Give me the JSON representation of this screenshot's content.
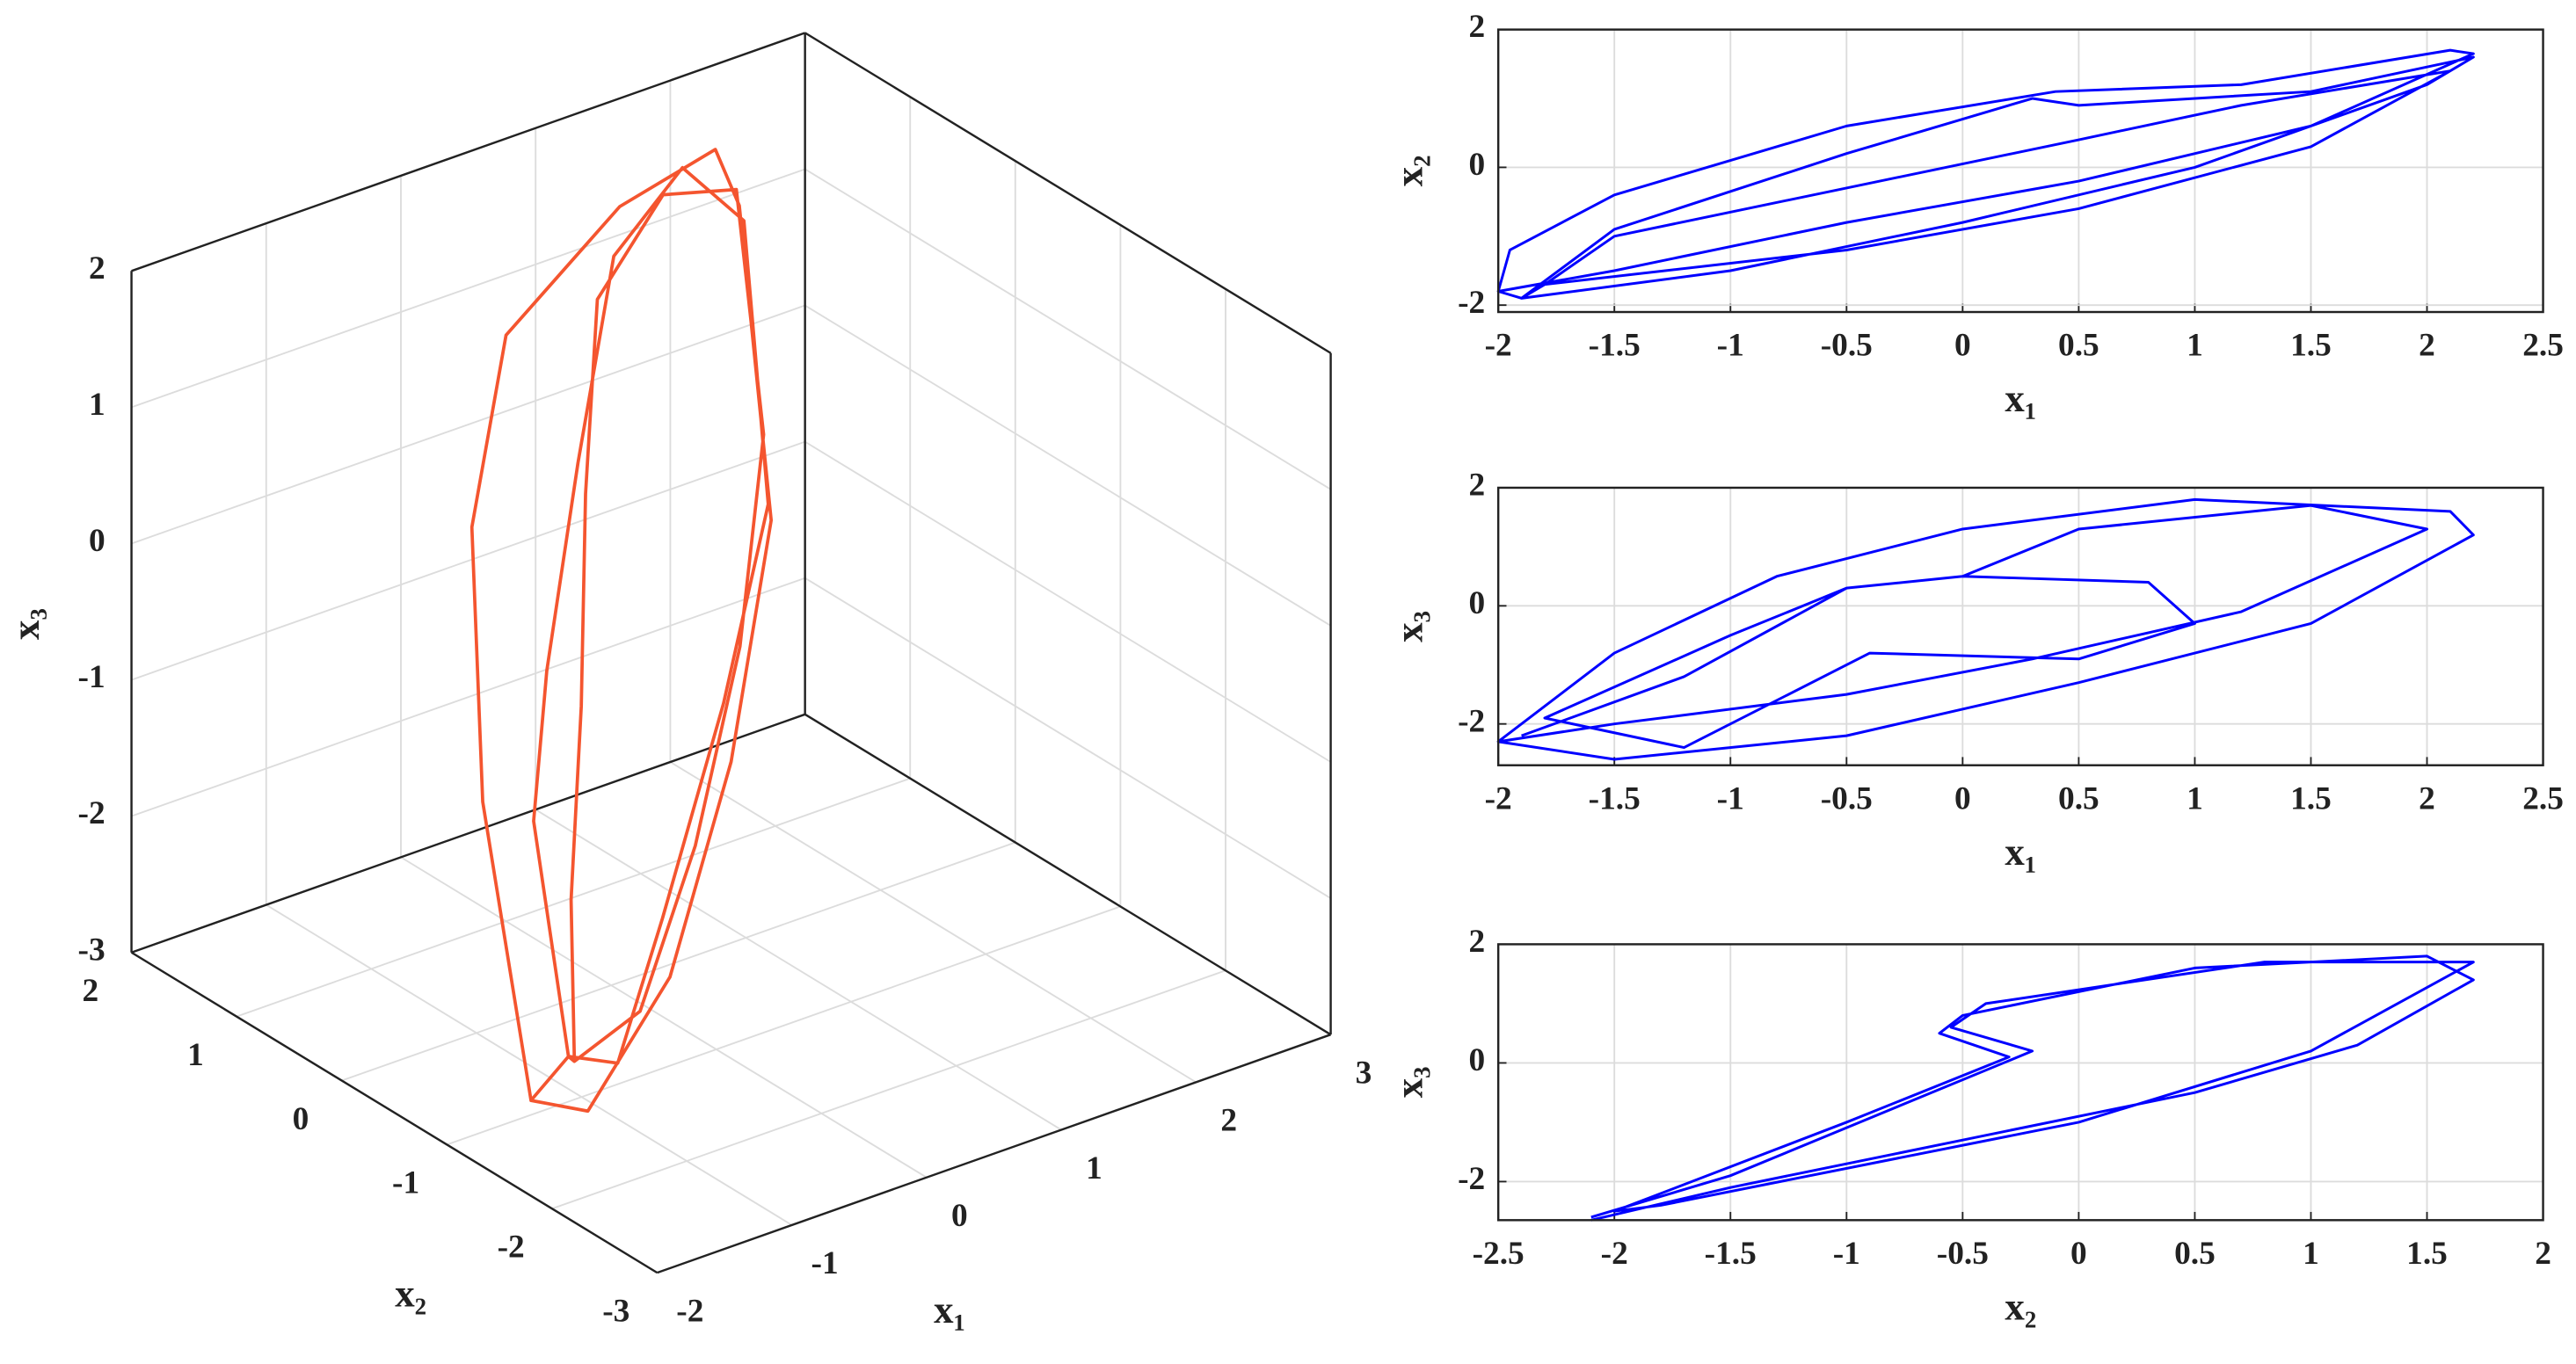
{
  "chart_data": [
    {
      "type": "line3d",
      "xlabel": "x₁",
      "ylabel": "x₂",
      "zlabel": "x₃",
      "color": "#f4552f",
      "grid": true,
      "xlim": [
        -2,
        3
      ],
      "ylim": [
        -3,
        2
      ],
      "zlim": [
        -3,
        2
      ],
      "xticks": [
        -2,
        -1,
        0,
        1,
        2,
        3
      ],
      "yticks": [
        -3,
        -2,
        -1,
        0,
        1,
        2
      ],
      "zticks": [
        -3,
        -2,
        -1,
        0,
        1,
        2
      ],
      "x": [
        -2,
        -1.5,
        -0.5,
        0.5,
        1.5,
        2.2,
        2.1,
        1,
        0,
        -0.8,
        -1.5,
        -2,
        -1.8,
        -1.2,
        -0.4,
        0.6,
        1.4,
        2.0,
        1.7,
        0.8,
        0.3,
        -0.4,
        -1.2,
        -1.8,
        -1.6,
        -0.8,
        0,
        0.8,
        1.6,
        2.1,
        1.4,
        0.6,
        0.2,
        -0.3,
        -1.0,
        -1.6
      ],
      "y": [
        -1.8,
        -1.7,
        -1.2,
        -0.5,
        0.4,
        1.6,
        1.7,
        1.2,
        1.0,
        0.3,
        -0.7,
        -1.8,
        -1.9,
        -1.6,
        -1.0,
        -0.3,
        0.3,
        1.3,
        1.5,
        1.0,
        0.7,
        0.1,
        -0.8,
        -1.9,
        -1.7,
        -1.3,
        -0.8,
        -0.2,
        0.6,
        1.5,
        1.3,
        0.9,
        0.5,
        -0.1,
        -0.9,
        -1.7
      ],
      "z": [
        -2.3,
        -2.6,
        -2.2,
        -1.3,
        -0.3,
        1.2,
        1.6,
        1.8,
        1.3,
        0.5,
        -0.8,
        -2.3,
        -2.0,
        -2.4,
        -1.9,
        -1.0,
        -0.1,
        1.3,
        1.7,
        1.6,
        0.4,
        -0.6,
        -1.0,
        -2.0,
        -2.2,
        -2.3,
        -1.6,
        -0.7,
        0.2,
        1.4,
        1.7,
        1.4,
        0.3,
        -0.8,
        -1.6,
        -2.2
      ]
    },
    {
      "type": "line",
      "xlabel": "x₁",
      "ylabel": "x₂",
      "color": "#0000ff",
      "grid": true,
      "xlim": [
        -2,
        2.5
      ],
      "ylim": [
        -2.1,
        2
      ],
      "xticks": [
        -2,
        -1.5,
        -1,
        -0.5,
        0,
        0.5,
        1,
        1.5,
        2,
        2.5
      ],
      "yticks": [
        -2,
        0,
        2
      ],
      "x": [
        -2,
        -1.5,
        -0.5,
        0.5,
        1.5,
        2.2,
        2.1,
        1.2,
        0.4,
        -0.5,
        -1.5,
        -1.95,
        -2,
        -1.9,
        -1,
        0,
        1,
        2,
        2.2,
        1.5,
        0.5,
        0.3,
        -0.5,
        -1.5,
        -1.9,
        -1.8,
        -0.5,
        0.5,
        1.5,
        2.1,
        1.2,
        0.5,
        -0.5,
        -1.5,
        -1.8
      ],
      "y": [
        -1.8,
        -1.5,
        -0.8,
        -0.2,
        0.6,
        1.65,
        1.7,
        1.2,
        1.1,
        0.6,
        -0.4,
        -1.2,
        -1.8,
        -1.9,
        -1.5,
        -0.8,
        0,
        1.2,
        1.6,
        1.1,
        0.9,
        1.0,
        0.2,
        -0.9,
        -1.9,
        -1.7,
        -1.2,
        -0.6,
        0.3,
        1.4,
        0.9,
        0.4,
        -0.3,
        -1.0,
        -1.7
      ]
    },
    {
      "type": "line",
      "xlabel": "x₁",
      "ylabel": "x₃",
      "color": "#0000ff",
      "grid": true,
      "xlim": [
        -2,
        2.5
      ],
      "ylim": [
        -2.7,
        2
      ],
      "xticks": [
        -2,
        -1.5,
        -1,
        -0.5,
        0,
        0.5,
        1,
        1.5,
        2,
        2.5
      ],
      "yticks": [
        -2,
        0,
        2
      ],
      "x": [
        -2,
        -1.5,
        -0.5,
        0.5,
        1.5,
        2.2,
        2.1,
        1,
        0,
        -0.8,
        -1.5,
        -2,
        -1.5,
        -0.5,
        0.3,
        1.2,
        2,
        1.5,
        0.5,
        0,
        -0.5,
        -1,
        -1.8,
        -1.2,
        -0.4,
        0.5,
        1.0,
        0.8,
        0,
        -0.5,
        -1.2,
        -1.9
      ],
      "y": [
        -2.3,
        -2.6,
        -2.2,
        -1.3,
        -0.3,
        1.2,
        1.6,
        1.8,
        1.3,
        0.5,
        -0.8,
        -2.3,
        -2.0,
        -1.5,
        -0.9,
        -0.1,
        1.3,
        1.7,
        1.3,
        0.5,
        0.3,
        -0.5,
        -1.9,
        -2.4,
        -0.8,
        -0.9,
        -0.3,
        0.4,
        0.5,
        0.3,
        -1.2,
        -2.2
      ]
    },
    {
      "type": "line",
      "xlabel": "x₂",
      "ylabel": "x₃",
      "color": "#0000ff",
      "grid": true,
      "xlim": [
        -2.5,
        2
      ],
      "ylim": [
        -2.65,
        2
      ],
      "xticks": [
        -2.5,
        -2,
        -1.5,
        -1,
        -0.5,
        0,
        0.5,
        1,
        1.5,
        2
      ],
      "yticks": [
        -2,
        0,
        2
      ],
      "x": [
        -2.1,
        -1.5,
        -0.5,
        0.5,
        1.2,
        1.7,
        1.5,
        0.5,
        -0.5,
        -0.6,
        -0.3,
        -1,
        -2.0,
        -1.8,
        0,
        1.0,
        1.7,
        0.8,
        -0.4,
        -0.55,
        -0.2,
        -1.5,
        -2.1
      ],
      "y": [
        -2.65,
        -2.1,
        -1.3,
        -0.5,
        0.3,
        1.4,
        1.8,
        1.6,
        0.8,
        0.5,
        0.1,
        -1.0,
        -2.5,
        -2.4,
        -1.0,
        0.2,
        1.7,
        1.7,
        1.0,
        0.6,
        0.2,
        -1.9,
        -2.6
      ]
    }
  ]
}
